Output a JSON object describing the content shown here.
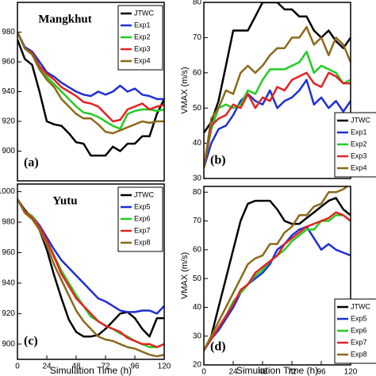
{
  "chart_data": [
    {
      "type": "line",
      "title": "Mangkhut",
      "panel_label": "(a)",
      "legend": "upper right",
      "x": [
        0,
        6,
        12,
        18,
        24,
        30,
        36,
        42,
        48,
        54,
        60,
        66,
        72,
        78,
        84,
        90,
        96,
        102,
        108,
        114,
        120
      ],
      "xlim": [
        0,
        120
      ],
      "ylim": [
        880,
        1000
      ],
      "yticks": [
        900,
        920,
        940,
        960,
        980
      ],
      "series": [
        {
          "name": "JTWC",
          "color": "#000000",
          "values": [
            975,
            962,
            958,
            940,
            920,
            918,
            917,
            912,
            906,
            905,
            897,
            897,
            897,
            903,
            900,
            905,
            905,
            910,
            910,
            925,
            935
          ]
        },
        {
          "name": "Exp1",
          "color": "#1f2fd8",
          "values": [
            980,
            970,
            967,
            960,
            953,
            950,
            946,
            943,
            940,
            938,
            937,
            940,
            938,
            940,
            944,
            940,
            942,
            938,
            937,
            935,
            935
          ]
        },
        {
          "name": "Exp2",
          "color": "#22cc22",
          "values": [
            980,
            969,
            965,
            955,
            950,
            945,
            940,
            935,
            930,
            926,
            925,
            923,
            920,
            917,
            915,
            925,
            927,
            928,
            928,
            927,
            928
          ]
        },
        {
          "name": "Exp3",
          "color": "#e52222",
          "values": [
            980,
            969,
            966,
            957,
            952,
            948,
            943,
            940,
            937,
            933,
            932,
            930,
            925,
            920,
            921,
            928,
            930,
            932,
            928,
            930,
            931
          ]
        },
        {
          "name": "Exp4",
          "color": "#8b6a1a",
          "values": [
            980,
            969,
            965,
            955,
            948,
            943,
            935,
            930,
            925,
            922,
            922,
            918,
            913,
            912,
            914,
            916,
            918,
            920,
            919,
            920,
            920
          ]
        }
      ]
    },
    {
      "type": "line",
      "panel_label": "(b)",
      "ylabel": "VMAX  (m/s)",
      "legend": "lower right",
      "x": [
        0,
        6,
        12,
        18,
        24,
        30,
        36,
        42,
        48,
        54,
        60,
        66,
        72,
        78,
        84,
        90,
        96,
        102,
        108,
        114,
        120
      ],
      "xlim": [
        0,
        120
      ],
      "ylim": [
        30,
        80
      ],
      "yticks": [
        30,
        40,
        50,
        60,
        70,
        80
      ],
      "series": [
        {
          "name": "JTWC",
          "color": "#000000",
          "values": [
            43,
            46,
            52,
            62,
            72,
            72,
            72,
            76,
            80,
            80,
            80,
            78,
            78,
            76,
            76,
            72,
            70,
            72,
            69,
            67,
            70
          ]
        },
        {
          "name": "Exp1",
          "color": "#1f2fd8",
          "values": [
            33,
            40,
            44,
            45,
            48,
            52,
            54,
            52,
            51,
            55,
            50,
            52,
            53,
            55,
            58,
            51,
            53,
            50,
            52,
            49,
            52
          ]
        },
        {
          "name": "Exp2",
          "color": "#22cc22",
          "values": [
            33,
            44,
            50,
            51,
            50,
            51,
            55,
            54,
            58,
            61,
            61,
            61,
            62,
            63,
            66,
            60,
            62,
            61,
            60,
            57,
            58
          ]
        },
        {
          "name": "Exp3",
          "color": "#e52222",
          "values": [
            33,
            45,
            47,
            48,
            51,
            50,
            54,
            50,
            53,
            52,
            56,
            55,
            58,
            59,
            60,
            57,
            56,
            60,
            59,
            57,
            57
          ]
        },
        {
          "name": "Exp4",
          "color": "#8b6a1a",
          "values": [
            33,
            47,
            50,
            55,
            54,
            60,
            62,
            60,
            62,
            65,
            67,
            67,
            70,
            70,
            73,
            68,
            70,
            65,
            70,
            68,
            63
          ]
        }
      ]
    },
    {
      "type": "line",
      "title": "Yutu",
      "panel_label": "(c)",
      "xlabel": "Simulation Time (h)",
      "legend": "upper right",
      "x": [
        0,
        6,
        12,
        18,
        24,
        30,
        36,
        42,
        48,
        54,
        60,
        66,
        72,
        78,
        84,
        90,
        96,
        102,
        108,
        114,
        120
      ],
      "xlim": [
        0,
        120
      ],
      "xticks": [
        0,
        24,
        48,
        72,
        96,
        120
      ],
      "ylim": [
        890,
        1005
      ],
      "yticks": [
        900,
        920,
        940,
        960,
        980,
        1000
      ],
      "series": [
        {
          "name": "JTWC",
          "color": "#000000",
          "values": [
            995,
            988,
            983,
            975,
            962,
            945,
            930,
            916,
            908,
            905,
            905,
            906,
            910,
            915,
            920,
            921,
            917,
            910,
            905,
            917,
            917
          ]
        },
        {
          "name": "Exp5",
          "color": "#1f2fd8",
          "values": [
            995,
            987,
            984,
            978,
            970,
            962,
            955,
            950,
            945,
            940,
            935,
            930,
            928,
            925,
            922,
            921,
            921,
            922,
            922,
            920,
            925
          ]
        },
        {
          "name": "Exp6",
          "color": "#22cc22",
          "values": [
            995,
            987,
            984,
            977,
            968,
            958,
            948,
            940,
            932,
            925,
            918,
            915,
            912,
            910,
            907,
            905,
            902,
            900,
            898,
            898,
            900
          ]
        },
        {
          "name": "Exp7",
          "color": "#e52222",
          "values": [
            995,
            987,
            983,
            977,
            968,
            957,
            946,
            938,
            930,
            925,
            920,
            915,
            912,
            910,
            908,
            904,
            902,
            900,
            900,
            898,
            900
          ]
        },
        {
          "name": "Exp8",
          "color": "#8b6a1a",
          "values": [
            995,
            986,
            982,
            975,
            965,
            952,
            942,
            932,
            922,
            915,
            910,
            905,
            903,
            902,
            900,
            898,
            897,
            895,
            893,
            892,
            893
          ]
        }
      ]
    },
    {
      "type": "line",
      "panel_label": "(d)",
      "xlabel": "Simulation Time (h)",
      "ylabel": "VMAX  (m/s)",
      "legend": "lower right",
      "x": [
        0,
        6,
        12,
        18,
        24,
        30,
        36,
        42,
        48,
        54,
        60,
        66,
        72,
        78,
        84,
        90,
        96,
        102,
        108,
        114,
        120
      ],
      "xlim": [
        0,
        120
      ],
      "xticks": [
        0,
        24,
        48,
        72,
        96,
        120
      ],
      "ylim": [
        20,
        82
      ],
      "yticks": [
        20,
        30,
        40,
        50,
        60,
        70,
        80
      ],
      "series": [
        {
          "name": "JTWC",
          "color": "#000000",
          "values": [
            25,
            30,
            40,
            50,
            60,
            70,
            76,
            77,
            77,
            77,
            74,
            70,
            69,
            69,
            71,
            73,
            75,
            77,
            78,
            74,
            72
          ]
        },
        {
          "name": "Exp5",
          "color": "#1f2fd8",
          "values": [
            25,
            29,
            32,
            36,
            40,
            45,
            48,
            50,
            52,
            55,
            60,
            62,
            65,
            67,
            68,
            64,
            60,
            62,
            60,
            59,
            58
          ]
        },
        {
          "name": "Exp6",
          "color": "#22cc22",
          "values": [
            25,
            29,
            33,
            37,
            42,
            45,
            48,
            51,
            53,
            56,
            58,
            60,
            63,
            65,
            67,
            67,
            70,
            70,
            72,
            72,
            70
          ]
        },
        {
          "name": "Exp7",
          "color": "#e52222",
          "values": [
            25,
            29,
            33,
            37,
            41,
            46,
            48,
            52,
            54,
            56,
            58,
            62,
            64,
            66,
            68,
            69,
            70,
            71,
            73,
            72,
            70
          ]
        },
        {
          "name": "Exp8",
          "color": "#8b6a1a",
          "values": [
            25,
            30,
            35,
            40,
            45,
            50,
            55,
            57,
            58,
            62,
            62,
            66,
            68,
            72,
            72,
            75,
            76,
            80,
            80,
            81,
            83
          ]
        }
      ]
    }
  ]
}
